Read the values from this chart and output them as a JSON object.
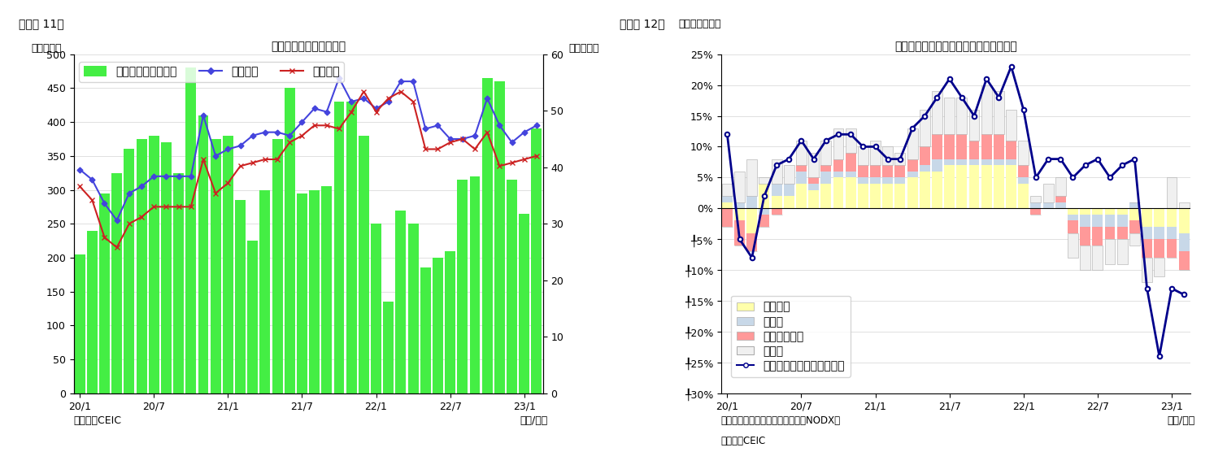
{
  "chart1": {
    "title": "シンガポール　貿易収支",
    "suptitle": "（図表 11）",
    "ylabel_left": "（億ドル）",
    "ylabel_right": "（億ドル）",
    "xlabel": "（年/月）",
    "source": "（資料）CEIC",
    "bar_color": "#44ee44",
    "line1_color": "#4444dd",
    "line2_color": "#cc2222",
    "ylim_left": [
      0,
      500
    ],
    "ylim_right": [
      0,
      60
    ],
    "yticks_left": [
      0,
      50,
      100,
      150,
      200,
      250,
      300,
      350,
      400,
      450,
      500
    ],
    "yticks_right": [
      0,
      10,
      20,
      30,
      40,
      50,
      60
    ],
    "x_labels": [
      "20/1",
      "20/7",
      "21/1",
      "21/7",
      "22/1",
      "22/7",
      "23/1"
    ],
    "legend_labels": [
      "貿易収支（右目盛）",
      "総輸出額",
      "総輸入額"
    ],
    "bars": [
      205,
      240,
      295,
      325,
      360,
      375,
      380,
      370,
      325,
      480,
      410,
      375,
      380,
      285,
      225,
      300,
      375,
      450,
      295,
      300,
      305,
      430,
      430,
      380,
      250,
      135,
      270,
      250,
      185,
      200,
      210,
      315,
      320,
      465,
      460,
      315,
      265,
      390
    ],
    "line1": [
      330,
      315,
      280,
      255,
      295,
      305,
      320,
      320,
      320,
      320,
      410,
      350,
      360,
      365,
      380,
      385,
      385,
      380,
      400,
      420,
      415,
      465,
      430,
      435,
      420,
      430,
      460,
      460,
      390,
      395,
      375,
      375,
      380,
      435,
      395,
      370,
      385,
      395
    ],
    "line2": [
      305,
      285,
      230,
      215,
      250,
      260,
      275,
      275,
      275,
      275,
      345,
      295,
      310,
      335,
      340,
      345,
      345,
      370,
      380,
      395,
      395,
      390,
      415,
      445,
      415,
      435,
      445,
      430,
      360,
      360,
      370,
      375,
      360,
      385,
      335,
      340,
      345,
      350
    ]
  },
  "chart2": {
    "title": "シンガポール　輸出の伸び率（品目別）",
    "suptitle": "（図表 12）",
    "ylabel_left": "（前年同期比）",
    "xlabel": "（年/月）",
    "note": "（注）輸出額は非石油地場輸出（NODX）",
    "source": "（資料）CEIC",
    "line_color": "#00008B",
    "ylim": [
      -0.3,
      0.25
    ],
    "yticks": [
      0.25,
      0.2,
      0.15,
      0.1,
      0.05,
      0.0,
      -0.05,
      -0.1,
      -0.15,
      -0.2,
      -0.25,
      -0.3
    ],
    "yticklabels": [
      "25%",
      "20%",
      "15%",
      "10%",
      "5%",
      "0%",
      "╀5%",
      "╀10%",
      "╀15%",
      "╀20%",
      "╀25%",
      "╀30%"
    ],
    "x_labels": [
      "20/1",
      "20/7",
      "21/1",
      "21/7",
      "22/1",
      "22/7",
      "23/1"
    ],
    "legend_labels": [
      "電子製品",
      "医薬品",
      "石油化学製品",
      "その他",
      "非石油輸出（再輸出除く）"
    ],
    "colors": [
      "#ffffaa",
      "#c8d8e8",
      "#ff9999",
      "#f0f0f0",
      "#00008B"
    ],
    "electronics": [
      0.01,
      -0.02,
      -0.04,
      0.04,
      0.02,
      0.02,
      0.04,
      0.03,
      0.04,
      0.05,
      0.05,
      0.04,
      0.04,
      0.04,
      0.04,
      0.05,
      0.06,
      0.06,
      0.07,
      0.07,
      0.07,
      0.07,
      0.07,
      0.07,
      0.04,
      0.0,
      0.0,
      0.0,
      -0.01,
      -0.01,
      -0.01,
      -0.01,
      -0.01,
      -0.02,
      -0.03,
      -0.03,
      -0.03,
      -0.04
    ],
    "pharma": [
      0.01,
      0.01,
      0.02,
      -0.01,
      0.02,
      0.02,
      0.02,
      0.01,
      0.02,
      0.01,
      0.01,
      0.01,
      0.01,
      0.01,
      0.01,
      0.01,
      0.01,
      0.02,
      0.01,
      0.01,
      0.01,
      0.01,
      0.01,
      0.01,
      0.01,
      0.01,
      0.01,
      0.01,
      -0.01,
      -0.02,
      -0.02,
      -0.02,
      -0.02,
      0.01,
      -0.02,
      -0.02,
      -0.02,
      -0.03
    ],
    "petrochem": [
      -0.03,
      -0.04,
      -0.03,
      -0.02,
      -0.01,
      0.0,
      0.01,
      0.01,
      0.01,
      0.02,
      0.03,
      0.02,
      0.02,
      0.02,
      0.02,
      0.02,
      0.03,
      0.04,
      0.04,
      0.04,
      0.03,
      0.04,
      0.04,
      0.03,
      0.02,
      -0.01,
      0.0,
      0.01,
      -0.02,
      -0.03,
      -0.03,
      -0.02,
      -0.02,
      -0.02,
      -0.03,
      -0.03,
      -0.03,
      -0.03
    ],
    "other": [
      0.02,
      0.05,
      0.06,
      0.01,
      0.04,
      0.03,
      0.04,
      0.04,
      0.04,
      0.05,
      0.04,
      0.03,
      0.04,
      0.03,
      0.02,
      0.05,
      0.06,
      0.07,
      0.06,
      0.06,
      0.05,
      0.08,
      0.07,
      0.05,
      0.04,
      0.01,
      0.03,
      0.03,
      -0.04,
      -0.04,
      -0.04,
      -0.04,
      -0.04,
      -0.02,
      -0.04,
      -0.03,
      0.05,
      0.01
    ],
    "nodx": [
      0.12,
      -0.05,
      -0.08,
      0.02,
      0.07,
      0.08,
      0.11,
      0.08,
      0.11,
      0.12,
      0.12,
      0.1,
      0.1,
      0.08,
      0.08,
      0.13,
      0.15,
      0.18,
      0.21,
      0.18,
      0.15,
      0.21,
      0.18,
      0.23,
      0.16,
      0.05,
      0.08,
      0.08,
      0.05,
      0.07,
      0.08,
      0.05,
      0.07,
      0.08,
      -0.13,
      -0.24,
      -0.13,
      -0.14
    ]
  }
}
